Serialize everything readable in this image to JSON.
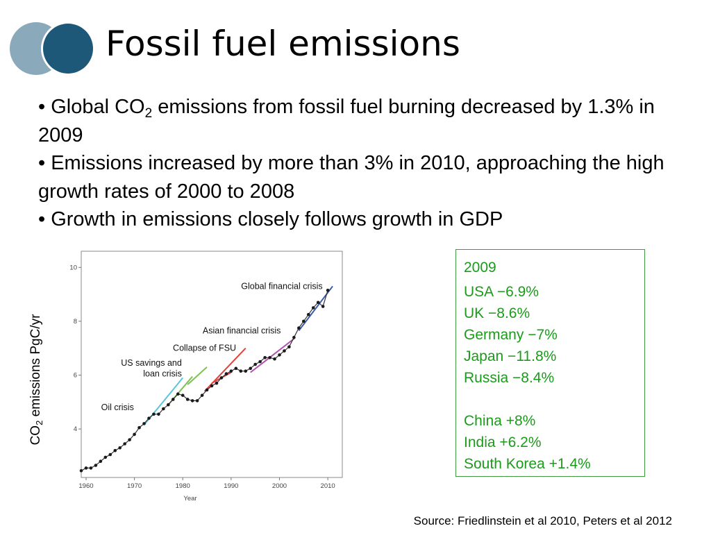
{
  "slide": {
    "title": "Fossil fuel emissions",
    "bullets": [
      {
        "pre": "• Global CO",
        "sub": "2",
        "post": " emissions from fossil fuel burning decreased by 1.3% in 2009"
      },
      {
        "text": "• Emissions increased by more than 3% in 2010, approaching the high growth rates of 2000 to 2008"
      },
      {
        "text": "• Growth in emissions closely follows growth in GDP"
      }
    ],
    "source": "Source: Friedlinstein et al 2010, Peters et al 2012"
  },
  "theme": {
    "logo_light": "#8aaabb",
    "logo_dark": "#1d5878",
    "box_green": "#1a9b1a"
  },
  "info_box": {
    "year": "2009",
    "group1": [
      "USA −6.9%",
      "UK −8.6%",
      "Germany −7%",
      "Japan −11.8%",
      "Russia −8.4%"
    ],
    "group2": [
      "China +8%",
      "India +6.2%",
      "South Korea +1.4%"
    ]
  },
  "chart_data": {
    "type": "line",
    "ylabel": {
      "pre": "CO",
      "sub": "2",
      "post": " emissions PgC/yr"
    },
    "xlabel": "Year",
    "xlim": [
      1959,
      2013
    ],
    "ylim": [
      2.2,
      10.6
    ],
    "x_ticks": [
      1960,
      1970,
      1980,
      1990,
      2000,
      2010
    ],
    "y_ticks": [
      4,
      6,
      8,
      10
    ],
    "series": [
      {
        "x": [
          1959,
          1960,
          1961,
          1962,
          1963,
          1964,
          1965,
          1966,
          1967,
          1968,
          1969,
          1970,
          1971,
          1972,
          1973,
          1974,
          1975,
          1976,
          1977,
          1978,
          1979,
          1980,
          1981,
          1982,
          1983,
          1984,
          1985,
          1986,
          1987,
          1988,
          1989,
          1990,
          1991,
          1992,
          1993,
          1994,
          1995,
          1996,
          1997,
          1998,
          1999,
          2000,
          2001,
          2002,
          2003,
          2004,
          2005,
          2006,
          2007,
          2008,
          2009,
          2010
        ],
        "y": [
          2.45,
          2.55,
          2.55,
          2.65,
          2.8,
          2.95,
          3.05,
          3.2,
          3.3,
          3.45,
          3.6,
          3.8,
          4.05,
          4.2,
          4.4,
          4.55,
          4.55,
          4.75,
          4.9,
          5.1,
          5.3,
          5.25,
          5.1,
          5.05,
          5.05,
          5.25,
          5.45,
          5.6,
          5.7,
          5.9,
          6.05,
          6.15,
          6.25,
          6.15,
          6.15,
          6.25,
          6.4,
          6.5,
          6.65,
          6.65,
          6.6,
          6.75,
          6.9,
          7.05,
          7.4,
          7.75,
          8.0,
          8.25,
          8.5,
          8.7,
          8.55,
          9.15
        ]
      }
    ],
    "trend_lines": [
      {
        "x": [
          1972,
          1980
        ],
        "y": [
          4.15,
          5.9
        ],
        "color": "#5bc6d8"
      },
      {
        "x": [
          1977,
          1982
        ],
        "y": [
          4.9,
          5.95
        ],
        "color": "#7cc24f"
      },
      {
        "x": [
          1981,
          1985
        ],
        "y": [
          5.65,
          6.3
        ],
        "color": "#7cc24f"
      },
      {
        "x": [
          1984.5,
          1993
        ],
        "y": [
          5.4,
          7.0
        ],
        "color": "#e0413a"
      },
      {
        "x": [
          1986,
          1990
        ],
        "y": [
          5.7,
          6.1
        ],
        "color": "#e0413a"
      },
      {
        "x": [
          1994,
          2003
        ],
        "y": [
          6.1,
          7.35
        ],
        "color": "#b44fb0"
      },
      {
        "x": [
          2004,
          2011
        ],
        "y": [
          7.65,
          9.3
        ],
        "color": "#3c5aa8"
      }
    ],
    "annotations": [
      {
        "text": "Global financial crisis",
        "anchor": "middle",
        "x": 2000.5,
        "y": 9.2
      },
      {
        "text": "Asian financial crisis",
        "anchor": "middle",
        "x": 1992.2,
        "y": 7.55
      },
      {
        "text": "Collapse of FSU",
        "anchor": "middle",
        "x": 1984.5,
        "y": 6.9
      },
      {
        "text": "US savings and",
        "anchor": "end",
        "x": 1979.8,
        "y": 6.35
      },
      {
        "text": "loan crisis",
        "anchor": "end",
        "x": 1979.8,
        "y": 5.95
      },
      {
        "text": "Oil crisis",
        "anchor": "middle",
        "x": 1966.5,
        "y": 4.7
      }
    ]
  }
}
